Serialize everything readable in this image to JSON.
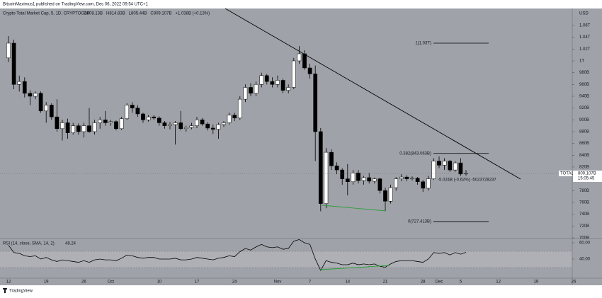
{
  "top_bar": {
    "text": "BitcoinMaximus1 published on TradingView.com, Dec 06, 2022 09:54 UTC+1"
  },
  "footer": {
    "brand": "TradingView"
  },
  "chart_data": {
    "type": "candlestick",
    "title": "Crypto Total Market Cap, 5, 1D, CRYPTOCAP",
    "ohlc_text": [
      "O808.13B",
      "H814.83B",
      "L805.44B",
      "C809.107B",
      "+1.038B (+0.13%)"
    ],
    "currency": "USD",
    "up_color": "#ffffff",
    "down_color": "#000000",
    "categories": [
      "12",
      null,
      null,
      null,
      null,
      null,
      null,
      "19",
      null,
      null,
      null,
      null,
      null,
      null,
      "26",
      null,
      null,
      null,
      null,
      "Oct",
      null,
      null,
      null,
      null,
      null,
      null,
      null,
      null,
      "10",
      null,
      null,
      null,
      null,
      null,
      null,
      "17",
      null,
      null,
      null,
      null,
      null,
      null,
      "24",
      null,
      null,
      null,
      null,
      null,
      null,
      null,
      "Nov",
      null,
      null,
      null,
      null,
      null,
      "7",
      null,
      null,
      null,
      null,
      null,
      null,
      "14",
      null,
      null,
      null,
      null,
      null,
      null,
      "21",
      null,
      null,
      null,
      null,
      null,
      null,
      "28",
      null,
      null,
      "Dec",
      null,
      null,
      null,
      "5",
      null,
      null,
      null,
      null,
      null,
      null,
      "12",
      null,
      null,
      null,
      null,
      null,
      null,
      "19",
      null,
      null,
      null,
      null,
      null,
      null,
      "26"
    ],
    "ohlc": [
      [
        1005,
        1042,
        998,
        1030
      ],
      [
        1030,
        1036,
        952,
        960
      ],
      [
        960,
        975,
        948,
        965
      ],
      [
        965,
        972,
        938,
        945
      ],
      [
        945,
        950,
        925,
        940
      ],
      [
        940,
        948,
        935,
        945
      ],
      [
        945,
        948,
        912,
        915
      ],
      [
        915,
        930,
        895,
        925
      ],
      [
        925,
        928,
        900,
        905
      ],
      [
        905,
        935,
        880,
        885
      ],
      [
        885,
        900,
        865,
        895
      ],
      [
        895,
        902,
        868,
        878
      ],
      [
        878,
        895,
        875,
        890
      ],
      [
        890,
        894,
        875,
        880
      ],
      [
        880,
        895,
        870,
        890
      ],
      [
        890,
        920,
        878,
        880
      ],
      [
        880,
        900,
        875,
        895
      ],
      [
        895,
        905,
        885,
        900
      ],
      [
        900,
        915,
        890,
        895
      ],
      [
        895,
        900,
        890,
        897
      ],
      [
        897,
        899,
        882,
        885
      ],
      [
        885,
        905,
        883,
        902
      ],
      [
        902,
        928,
        900,
        925
      ],
      [
        925,
        930,
        912,
        920
      ],
      [
        920,
        925,
        905,
        910
      ],
      [
        910,
        912,
        895,
        900
      ],
      [
        900,
        908,
        897,
        905
      ],
      [
        905,
        908,
        900,
        903
      ],
      [
        903,
        906,
        890,
        895
      ],
      [
        895,
        898,
        885,
        890
      ],
      [
        890,
        896,
        884,
        892
      ],
      [
        892,
        898,
        858,
        895
      ],
      [
        895,
        915,
        882,
        885
      ],
      [
        885,
        890,
        880,
        887
      ],
      [
        887,
        895,
        884,
        890
      ],
      [
        890,
        905,
        886,
        900
      ],
      [
        900,
        903,
        890,
        893
      ],
      [
        893,
        896,
        882,
        886
      ],
      [
        886,
        892,
        876,
        884
      ],
      [
        884,
        895,
        868,
        892
      ],
      [
        892,
        898,
        888,
        895
      ],
      [
        895,
        912,
        892,
        908
      ],
      [
        908,
        912,
        898,
        903
      ],
      [
        903,
        940,
        900,
        935
      ],
      [
        935,
        960,
        930,
        955
      ],
      [
        955,
        962,
        940,
        945
      ],
      [
        945,
        965,
        940,
        960
      ],
      [
        960,
        980,
        955,
        975
      ],
      [
        975,
        978,
        960,
        965
      ],
      [
        965,
        972,
        955,
        960
      ],
      [
        960,
        975,
        955,
        967
      ],
      [
        967,
        970,
        945,
        950
      ],
      [
        950,
        960,
        945,
        955
      ],
      [
        955,
        1005,
        952,
        1000
      ],
      [
        1000,
        1025,
        995,
        1012
      ],
      [
        1012,
        1018,
        985,
        988
      ],
      [
        988,
        995,
        970,
        978
      ],
      [
        978,
        992,
        830,
        880
      ],
      [
        880,
        886,
        745,
        758
      ],
      [
        758,
        852,
        750,
        845
      ],
      [
        845,
        850,
        815,
        822
      ],
      [
        822,
        828,
        808,
        815
      ],
      [
        815,
        818,
        790,
        800
      ],
      [
        800,
        825,
        772,
        795
      ],
      [
        795,
        815,
        790,
        810
      ],
      [
        810,
        815,
        792,
        797
      ],
      [
        797,
        805,
        790,
        802
      ],
      [
        802,
        810,
        792,
        796
      ],
      [
        796,
        802,
        792,
        800
      ],
      [
        800,
        802,
        775,
        780
      ],
      [
        780,
        785,
        745,
        762
      ],
      [
        762,
        790,
        758,
        785
      ],
      [
        785,
        803,
        780,
        800
      ],
      [
        800,
        808,
        796,
        803
      ],
      [
        803,
        806,
        796,
        800
      ],
      [
        800,
        804,
        797,
        801
      ],
      [
        801,
        803,
        790,
        795
      ],
      [
        795,
        798,
        778,
        784
      ],
      [
        784,
        805,
        780,
        800
      ],
      [
        800,
        835,
        798,
        830
      ],
      [
        830,
        838,
        818,
        823
      ],
      [
        823,
        835,
        815,
        830
      ],
      [
        830,
        832,
        812,
        815
      ],
      [
        815,
        830,
        812,
        827
      ],
      [
        827,
        835,
        805,
        808.07
      ],
      [
        808.13,
        814.83,
        805.44,
        809.107
      ],
      null,
      null,
      null,
      null,
      null,
      null,
      null,
      null,
      null,
      null,
      null,
      null,
      null,
      null,
      null,
      null,
      null,
      null,
      null,
      null
    ],
    "ylim": [
      698.7,
      1088.8
    ],
    "yticks": [
      {
        "value": 1060,
        "label": "1.06T"
      },
      {
        "value": 1040,
        "label": "1.04T"
      },
      {
        "value": 1020,
        "label": "1.02T"
      },
      {
        "value": 1000,
        "label": "1T"
      },
      {
        "value": 980,
        "label": "980B"
      },
      {
        "value": 960,
        "label": "960B"
      },
      {
        "value": 940,
        "label": "940B"
      },
      {
        "value": 920,
        "label": "920B"
      },
      {
        "value": 900,
        "label": "900B"
      },
      {
        "value": 880,
        "label": "880B"
      },
      {
        "value": 860,
        "label": "860B"
      },
      {
        "value": 840,
        "label": "840B"
      },
      {
        "value": 820,
        "label": "820B"
      },
      {
        "value": 780,
        "label": "780B"
      },
      {
        "value": 760,
        "label": "760B"
      },
      {
        "value": 740,
        "label": "740B"
      },
      {
        "value": 720,
        "label": "720B"
      },
      {
        "value": 700,
        "label": "700B"
      }
    ],
    "fib_levels": [
      {
        "value": 1030,
        "label": "1(1.03T)"
      },
      {
        "value": 843.063,
        "label": "0.382(843.063B)"
      },
      {
        "value": 727.413,
        "label": "0(727.413B)"
      }
    ],
    "measure_label": "-5.024B (-0.62%) -5023728237",
    "price_label": {
      "name": "TOTAL",
      "value": 809.107,
      "label": "809.107B",
      "timer": "15:05:45"
    },
    "rsi": {
      "label": "RSI (14, close, SMA, 14, 2)",
      "value_label": "48.24",
      "color": "#000000",
      "values": [
        57,
        48,
        47,
        44,
        43,
        44,
        40,
        42,
        39,
        37,
        39,
        38,
        37,
        36,
        38,
        36,
        39,
        40,
        39,
        39,
        38,
        41,
        45,
        44,
        42,
        41,
        42,
        42,
        40,
        40,
        40,
        41,
        39,
        39,
        40,
        42,
        41,
        40,
        39,
        41,
        42,
        44,
        43,
        49,
        53,
        51,
        55,
        58,
        55,
        54,
        55,
        52,
        53,
        62,
        64,
        60,
        58,
        40,
        26,
        38,
        36,
        35,
        33,
        33,
        35,
        33,
        34,
        33,
        34,
        31,
        30,
        34,
        37,
        38,
        38,
        38,
        37,
        36,
        40,
        48,
        47,
        48,
        45,
        48,
        46,
        48.24,
        null,
        null,
        null,
        null,
        null,
        null,
        null,
        null,
        null,
        null,
        null,
        null,
        null,
        null,
        null,
        null,
        null,
        null,
        null,
        null
      ],
      "ylim": [
        16.5,
        65.2
      ],
      "yticks": [
        {
          "value": 60,
          "label": "60.00"
        },
        {
          "value": 40,
          "label": "40.00"
        }
      ]
    }
  }
}
